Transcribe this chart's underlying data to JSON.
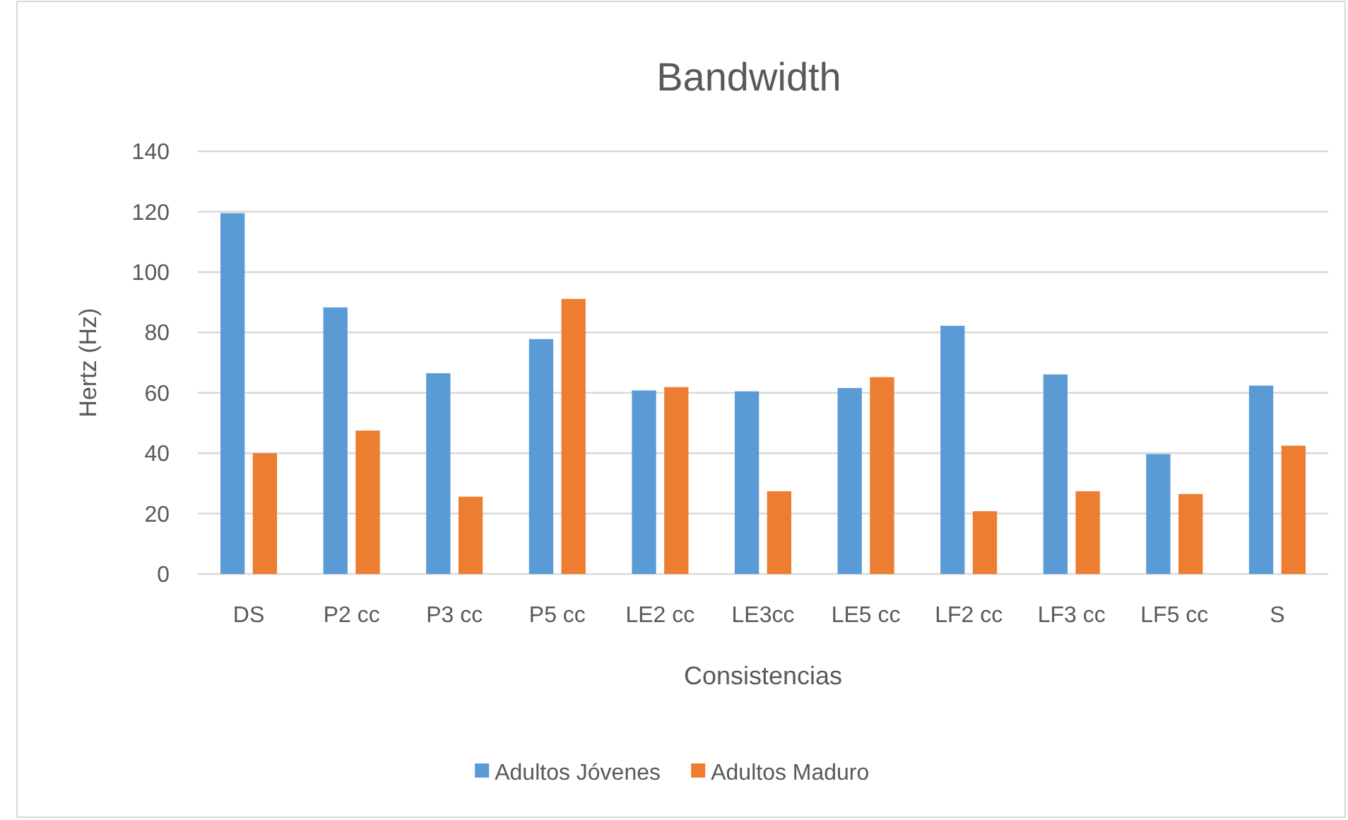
{
  "chart_data": {
    "type": "bar",
    "title": "Bandwidth",
    "xlabel": "Consistencias",
    "ylabel": "Hertz (Hz)",
    "categories": [
      "DS",
      "P2 cc",
      "P3 cc",
      "P5 cc",
      "LE2 cc",
      "LE3cc",
      "LE5 cc",
      "LF2 cc",
      "LF3 cc",
      "LF5 cc",
      "S"
    ],
    "series": [
      {
        "name": "Adultos Jóvenes",
        "color": "#5b9bd5",
        "values": [
          119.5,
          88.3,
          66.5,
          77.8,
          60.8,
          60.5,
          61.6,
          82.2,
          66.1,
          39.7,
          62.4
        ]
      },
      {
        "name": "Adultos Maduro",
        "color": "#ed7d31",
        "values": [
          40,
          47.5,
          25.6,
          91.1,
          61.9,
          27.4,
          65.2,
          20.8,
          27.4,
          26.5,
          42.5
        ]
      }
    ],
    "ylim": [
      0,
      140
    ],
    "yticks": [
      0,
      20,
      40,
      60,
      80,
      100,
      120,
      140
    ],
    "grid": "y",
    "legend": "bottom"
  }
}
